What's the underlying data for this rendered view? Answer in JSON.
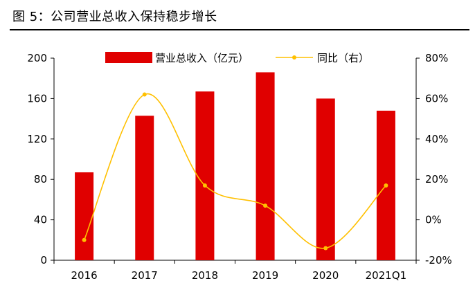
{
  "figure": {
    "title": "图 5：公司营业总收入保持稳步增长"
  },
  "chart_data": {
    "type": "bar",
    "categories": [
      "2016",
      "2017",
      "2018",
      "2019",
      "2020",
      "2021Q1"
    ],
    "series": [
      {
        "name": "营业总收入（亿元）",
        "type": "bar",
        "axis": "left",
        "values": [
          87,
          143,
          167,
          186,
          160,
          148
        ],
        "color": "#e00000"
      },
      {
        "name": "同比（右）",
        "type": "line",
        "axis": "right",
        "values": [
          -0.1,
          0.62,
          0.17,
          0.07,
          -0.14,
          0.17
        ],
        "color": "#ffc000"
      }
    ],
    "y_left": {
      "ticks": [
        "0",
        "40",
        "80",
        "120",
        "160",
        "200"
      ],
      "range": [
        0,
        200
      ]
    },
    "y_right": {
      "ticks": [
        "-20%",
        "0%",
        "20%",
        "40%",
        "60%",
        "80%"
      ],
      "range": [
        -0.2,
        0.8
      ]
    },
    "grid": false,
    "legend_position": "top-center"
  }
}
